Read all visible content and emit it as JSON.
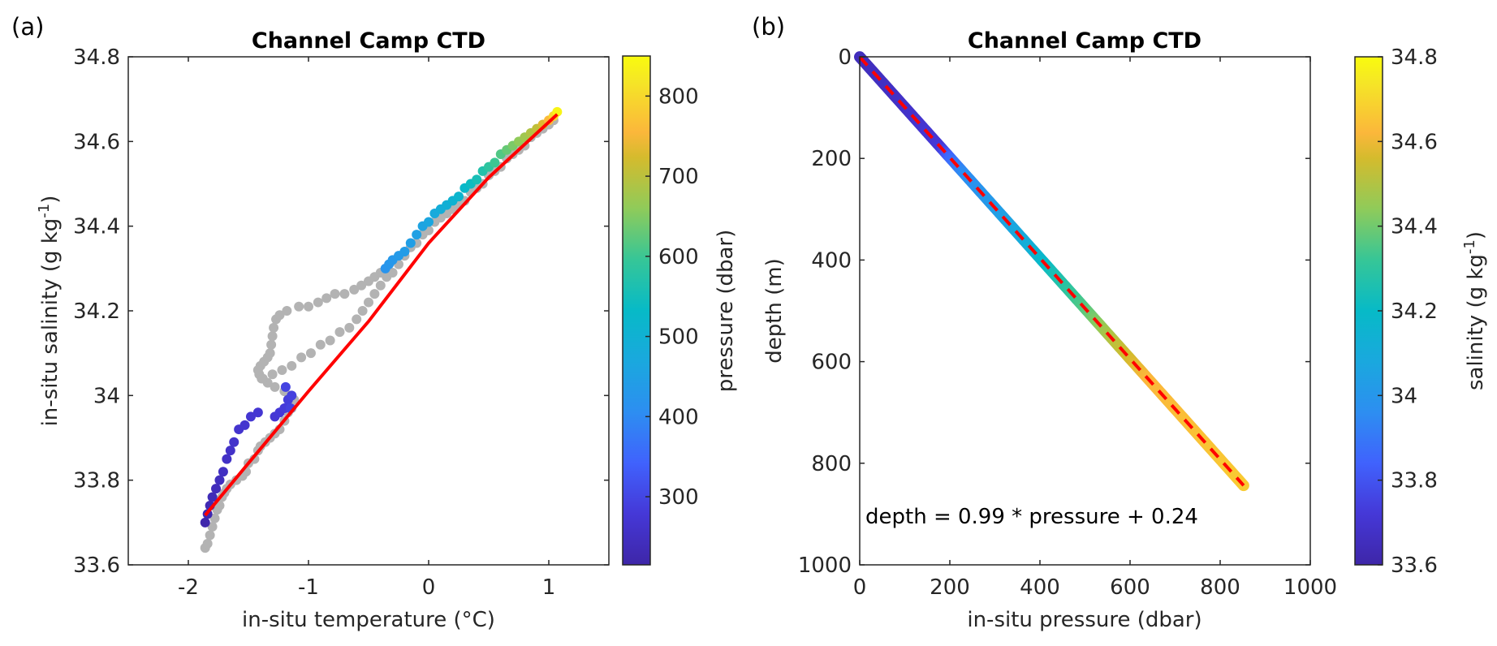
{
  "chart_data": [
    {
      "panel_label": "(a)",
      "type": "scatter",
      "title": "Channel Camp CTD",
      "xlabel": "in-situ temperature (°C)",
      "ylabel": "in-situ salinity (g kg⁻¹)",
      "ylabel_parts": {
        "base": "in-situ salinity (g kg",
        "sup": "-1",
        "end": ")"
      },
      "xlim": [
        -2.5,
        1.5
      ],
      "ylim": [
        33.6,
        34.8
      ],
      "xticks": [
        -2,
        -1,
        0,
        1
      ],
      "xtick_labels": [
        "-2",
        "-1",
        "0",
        "1"
      ],
      "yticks": [
        33.6,
        33.8,
        34.0,
        34.2,
        34.4,
        34.6,
        34.8
      ],
      "ytick_labels": [
        "33.6",
        "33.8",
        "34",
        "34.2",
        "34.4",
        "34.6",
        "34.8"
      ],
      "grid": false,
      "colorbar": {
        "label": "pressure (dbar)",
        "range": [
          215,
          850
        ],
        "ticks": [
          300,
          400,
          500,
          600,
          700,
          800
        ],
        "tick_labels": [
          "300",
          "400",
          "500",
          "600",
          "700",
          "800"
        ],
        "colormap": "parula"
      },
      "series": [
        {
          "name": "reference profile (gray)",
          "color": "#b3b3b3",
          "points_T_S": [
            [
              -1.86,
              33.64
            ],
            [
              -1.84,
              33.65
            ],
            [
              -1.82,
              33.67
            ],
            [
              -1.8,
              33.69
            ],
            [
              -1.78,
              33.71
            ],
            [
              -1.76,
              33.73
            ],
            [
              -1.74,
              33.74
            ],
            [
              -1.72,
              33.76
            ],
            [
              -1.7,
              33.77
            ],
            [
              -1.68,
              33.78
            ],
            [
              -1.65,
              33.79
            ],
            [
              -1.6,
              33.8
            ],
            [
              -1.55,
              33.81
            ],
            [
              -1.52,
              33.82
            ],
            [
              -1.5,
              33.84
            ],
            [
              -1.45,
              33.85
            ],
            [
              -1.42,
              33.87
            ],
            [
              -1.4,
              33.88
            ],
            [
              -1.36,
              33.89
            ],
            [
              -1.32,
              33.9
            ],
            [
              -1.28,
              33.91
            ],
            [
              -1.24,
              33.92
            ],
            [
              -1.2,
              33.94
            ],
            [
              -1.17,
              33.96
            ],
            [
              -1.14,
              33.97
            ],
            [
              -1.12,
              33.99
            ],
            [
              -1.15,
              34.0
            ],
            [
              -1.2,
              34.01
            ],
            [
              -1.28,
              34.02
            ],
            [
              -1.34,
              34.03
            ],
            [
              -1.39,
              34.04
            ],
            [
              -1.41,
              34.05
            ],
            [
              -1.42,
              34.06
            ],
            [
              -1.4,
              34.07
            ],
            [
              -1.37,
              34.08
            ],
            [
              -1.34,
              34.09
            ],
            [
              -1.32,
              34.1
            ],
            [
              -1.31,
              34.12
            ],
            [
              -1.3,
              34.14
            ],
            [
              -1.29,
              34.16
            ],
            [
              -1.27,
              34.18
            ],
            [
              -1.24,
              34.19
            ],
            [
              -1.18,
              34.2
            ],
            [
              -1.08,
              34.21
            ],
            [
              -1.0,
              34.21
            ],
            [
              -0.92,
              34.22
            ],
            [
              -0.85,
              34.23
            ],
            [
              -0.78,
              34.24
            ],
            [
              -0.7,
              34.24
            ],
            [
              -0.62,
              34.25
            ],
            [
              -0.56,
              34.26
            ],
            [
              -0.5,
              34.27
            ],
            [
              -0.45,
              34.28
            ],
            [
              -0.4,
              34.29
            ],
            [
              -0.35,
              34.3
            ],
            [
              -1.38,
              34.04
            ],
            [
              -1.3,
              34.05
            ],
            [
              -1.22,
              34.06
            ],
            [
              -1.14,
              34.07
            ],
            [
              -1.06,
              34.09
            ],
            [
              -0.98,
              34.1
            ],
            [
              -0.9,
              34.12
            ],
            [
              -0.82,
              34.13
            ],
            [
              -0.74,
              34.15
            ],
            [
              -0.66,
              34.16
            ],
            [
              -0.6,
              34.18
            ],
            [
              -0.55,
              34.2
            ],
            [
              -0.5,
              34.22
            ],
            [
              -0.45,
              34.24
            ],
            [
              -0.4,
              34.26
            ],
            [
              -0.35,
              34.28
            ],
            [
              -0.3,
              34.29
            ],
            [
              -0.25,
              34.31
            ],
            [
              -0.2,
              34.33
            ],
            [
              -0.15,
              34.35
            ],
            [
              -0.1,
              34.36
            ],
            [
              -0.05,
              34.38
            ],
            [
              0.0,
              34.39
            ],
            [
              0.05,
              34.41
            ],
            [
              0.1,
              34.42
            ],
            [
              0.15,
              34.43
            ],
            [
              0.2,
              34.44
            ],
            [
              0.25,
              34.45
            ],
            [
              0.3,
              34.46
            ],
            [
              0.35,
              34.48
            ],
            [
              0.4,
              34.49
            ],
            [
              0.45,
              34.5
            ],
            [
              0.5,
              34.52
            ],
            [
              0.55,
              34.53
            ],
            [
              0.6,
              34.54
            ],
            [
              0.65,
              34.56
            ],
            [
              0.7,
              34.57
            ],
            [
              0.75,
              34.58
            ],
            [
              0.8,
              34.59
            ],
            [
              0.85,
              34.61
            ],
            [
              0.9,
              34.62
            ],
            [
              0.95,
              34.63
            ],
            [
              1.0,
              34.64
            ],
            [
              1.04,
              34.65
            ]
          ]
        },
        {
          "name": "profile colored by pressure",
          "points_T_S_P": [
            [
              -1.86,
              33.7,
              220
            ],
            [
              -1.84,
              33.72,
              225
            ],
            [
              -1.82,
              33.74,
              230
            ],
            [
              -1.8,
              33.76,
              235
            ],
            [
              -1.77,
              33.78,
              240
            ],
            [
              -1.74,
              33.8,
              245
            ],
            [
              -1.71,
              33.82,
              250
            ],
            [
              -1.68,
              33.85,
              255
            ],
            [
              -1.65,
              33.87,
              258
            ],
            [
              -1.62,
              33.89,
              262
            ],
            [
              -1.58,
              33.92,
              266
            ],
            [
              -1.53,
              33.93,
              268
            ],
            [
              -1.48,
              33.95,
              270
            ],
            [
              -1.42,
              33.96,
              272
            ],
            [
              -1.28,
              33.95,
              275
            ],
            [
              -1.24,
              33.96,
              278
            ],
            [
              -1.2,
              33.97,
              282
            ],
            [
              -1.17,
              33.99,
              286
            ],
            [
              -1.14,
              34.0,
              290
            ],
            [
              -1.15,
              33.97,
              292
            ],
            [
              -1.19,
              34.02,
              295
            ],
            [
              -0.36,
              34.3,
              420
            ],
            [
              -0.33,
              34.31,
              425
            ],
            [
              -0.3,
              34.32,
              430
            ],
            [
              -0.25,
              34.33,
              435
            ],
            [
              -0.2,
              34.34,
              440
            ],
            [
              -0.15,
              34.36,
              445
            ],
            [
              -0.1,
              34.38,
              450
            ],
            [
              -0.05,
              34.4,
              458
            ],
            [
              0.0,
              34.41,
              465
            ],
            [
              0.05,
              34.43,
              475
            ],
            [
              0.1,
              34.44,
              485
            ],
            [
              0.15,
              34.45,
              495
            ],
            [
              0.2,
              34.46,
              505
            ],
            [
              0.25,
              34.47,
              515
            ],
            [
              0.3,
              34.49,
              525
            ],
            [
              0.35,
              34.5,
              540
            ],
            [
              0.4,
              34.51,
              555
            ],
            [
              0.45,
              34.53,
              570
            ],
            [
              0.5,
              34.54,
              585
            ],
            [
              0.55,
              34.55,
              600
            ],
            [
              0.6,
              34.57,
              615
            ],
            [
              0.65,
              34.58,
              630
            ],
            [
              0.7,
              34.59,
              645
            ],
            [
              0.75,
              34.6,
              660
            ],
            [
              0.8,
              34.61,
              675
            ],
            [
              0.85,
              34.62,
              690
            ],
            [
              0.9,
              34.63,
              705
            ],
            [
              0.95,
              34.64,
              730
            ],
            [
              1.0,
              34.65,
              760
            ],
            [
              1.04,
              34.66,
              800
            ],
            [
              1.07,
              34.67,
              840
            ]
          ]
        },
        {
          "name": "fit",
          "type": "line",
          "color": "#ff0000",
          "points_T_S": [
            [
              -1.86,
              33.717
            ],
            [
              -1.5,
              33.84
            ],
            [
              -1.0,
              34.01
            ],
            [
              -0.5,
              34.175
            ],
            [
              0.0,
              34.36
            ],
            [
              0.5,
              34.515
            ],
            [
              1.07,
              34.664
            ]
          ]
        }
      ]
    },
    {
      "panel_label": "(b)",
      "type": "scatter",
      "title": "Channel Camp CTD",
      "xlabel": "in-situ pressure (dbar)",
      "ylabel": "depth (m)",
      "xlim": [
        0,
        1000
      ],
      "ylim": [
        1000,
        0
      ],
      "y_reversed": true,
      "xticks": [
        0,
        200,
        400,
        600,
        800,
        1000
      ],
      "xtick_labels": [
        "0",
        "200",
        "400",
        "600",
        "800",
        "1000"
      ],
      "yticks": [
        0,
        200,
        400,
        600,
        800,
        1000
      ],
      "ytick_labels": [
        "0",
        "200",
        "400",
        "600",
        "800",
        "1000"
      ],
      "grid": false,
      "annotation": "depth = 0.99 * pressure + 0.24",
      "fit": {
        "slope": 0.99,
        "intercept": 0.24,
        "color": "#ff0000",
        "style": "dashed"
      },
      "colorbar": {
        "label": "salinity (g kg⁻¹)",
        "label_parts": {
          "base": "salinity (g kg",
          "sup": "-1",
          "end": ")"
        },
        "range": [
          33.6,
          34.8
        ],
        "ticks": [
          33.6,
          33.8,
          34.0,
          34.2,
          34.4,
          34.6,
          34.8
        ],
        "tick_labels": [
          "33.6",
          "33.8",
          "34",
          "34.2",
          "34.4",
          "34.6",
          "34.8"
        ],
        "colormap": "parula"
      },
      "series": [
        {
          "name": "profile colored by salinity",
          "pressure_range": [
            0,
            852
          ],
          "color_stops_P_S": [
            [
              0,
              33.65
            ],
            [
              100,
              33.68
            ],
            [
              180,
              33.72
            ],
            [
              200,
              33.85
            ],
            [
              230,
              33.95
            ],
            [
              300,
              34.02
            ],
            [
              380,
              34.12
            ],
            [
              430,
              34.24
            ],
            [
              500,
              34.36
            ],
            [
              560,
              34.5
            ],
            [
              640,
              34.62
            ],
            [
              852,
              34.67
            ]
          ]
        }
      ]
    }
  ]
}
